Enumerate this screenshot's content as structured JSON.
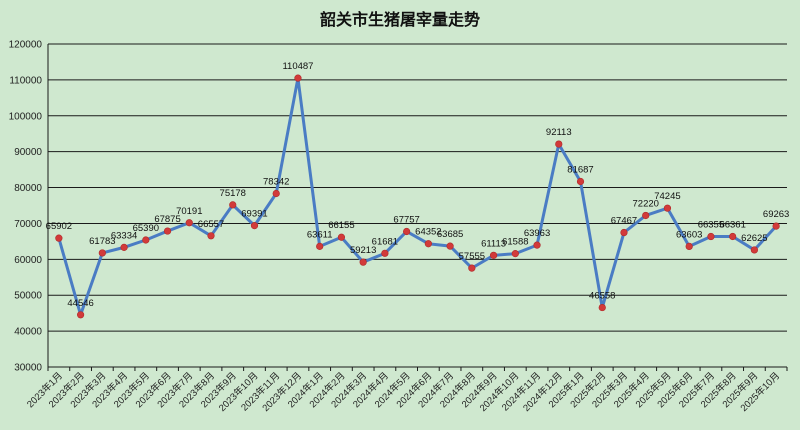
{
  "chart_data": {
    "type": "line",
    "title": "韶关市生猪屠宰量走势",
    "xlabel": "",
    "ylabel": "",
    "ylim": [
      30000,
      120000
    ],
    "yticks": [
      30000,
      40000,
      50000,
      60000,
      70000,
      80000,
      90000,
      100000,
      110000,
      120000
    ],
    "grid": true,
    "legend": "none",
    "categories": [
      "2023年1月",
      "2023年2月",
      "2023年3月",
      "2023年4月",
      "2023年5月",
      "2023年6月",
      "2023年7月",
      "2023年8月",
      "2023年9月",
      "2023年10月",
      "2023年11月",
      "2023年12月",
      "2024年1月",
      "2024年2月",
      "2024年3月",
      "2024年4月",
      "2024年5月",
      "2024年6月",
      "2024年7月",
      "2024年8月",
      "2024年9月",
      "2024年10月",
      "2024年11月",
      "2024年12月",
      "2025年1月",
      "2025年2月",
      "2025年3月",
      "2025年4月",
      "2025年5月",
      "2025年6月",
      "2025年7月",
      "2025年8月",
      "2025年9月",
      "2025年10月"
    ],
    "series": [
      {
        "name": "生猪屠宰量",
        "values": [
          65902,
          44546,
          61783,
          63334,
          65390,
          67875,
          70191,
          66557,
          75178,
          69391,
          78342,
          110487,
          63611,
          66155,
          59213,
          61681,
          67757,
          64352,
          63685,
          57555,
          61113,
          61588,
          63963,
          92113,
          81687,
          46558,
          67467,
          72220,
          74245,
          63603,
          66355,
          66361,
          62625,
          69263
        ]
      }
    ],
    "colors": {
      "line": "#4a7cc4",
      "marker": "#d23a3a",
      "background": "#cfe8cf",
      "grid": "#1a1a1a"
    }
  }
}
